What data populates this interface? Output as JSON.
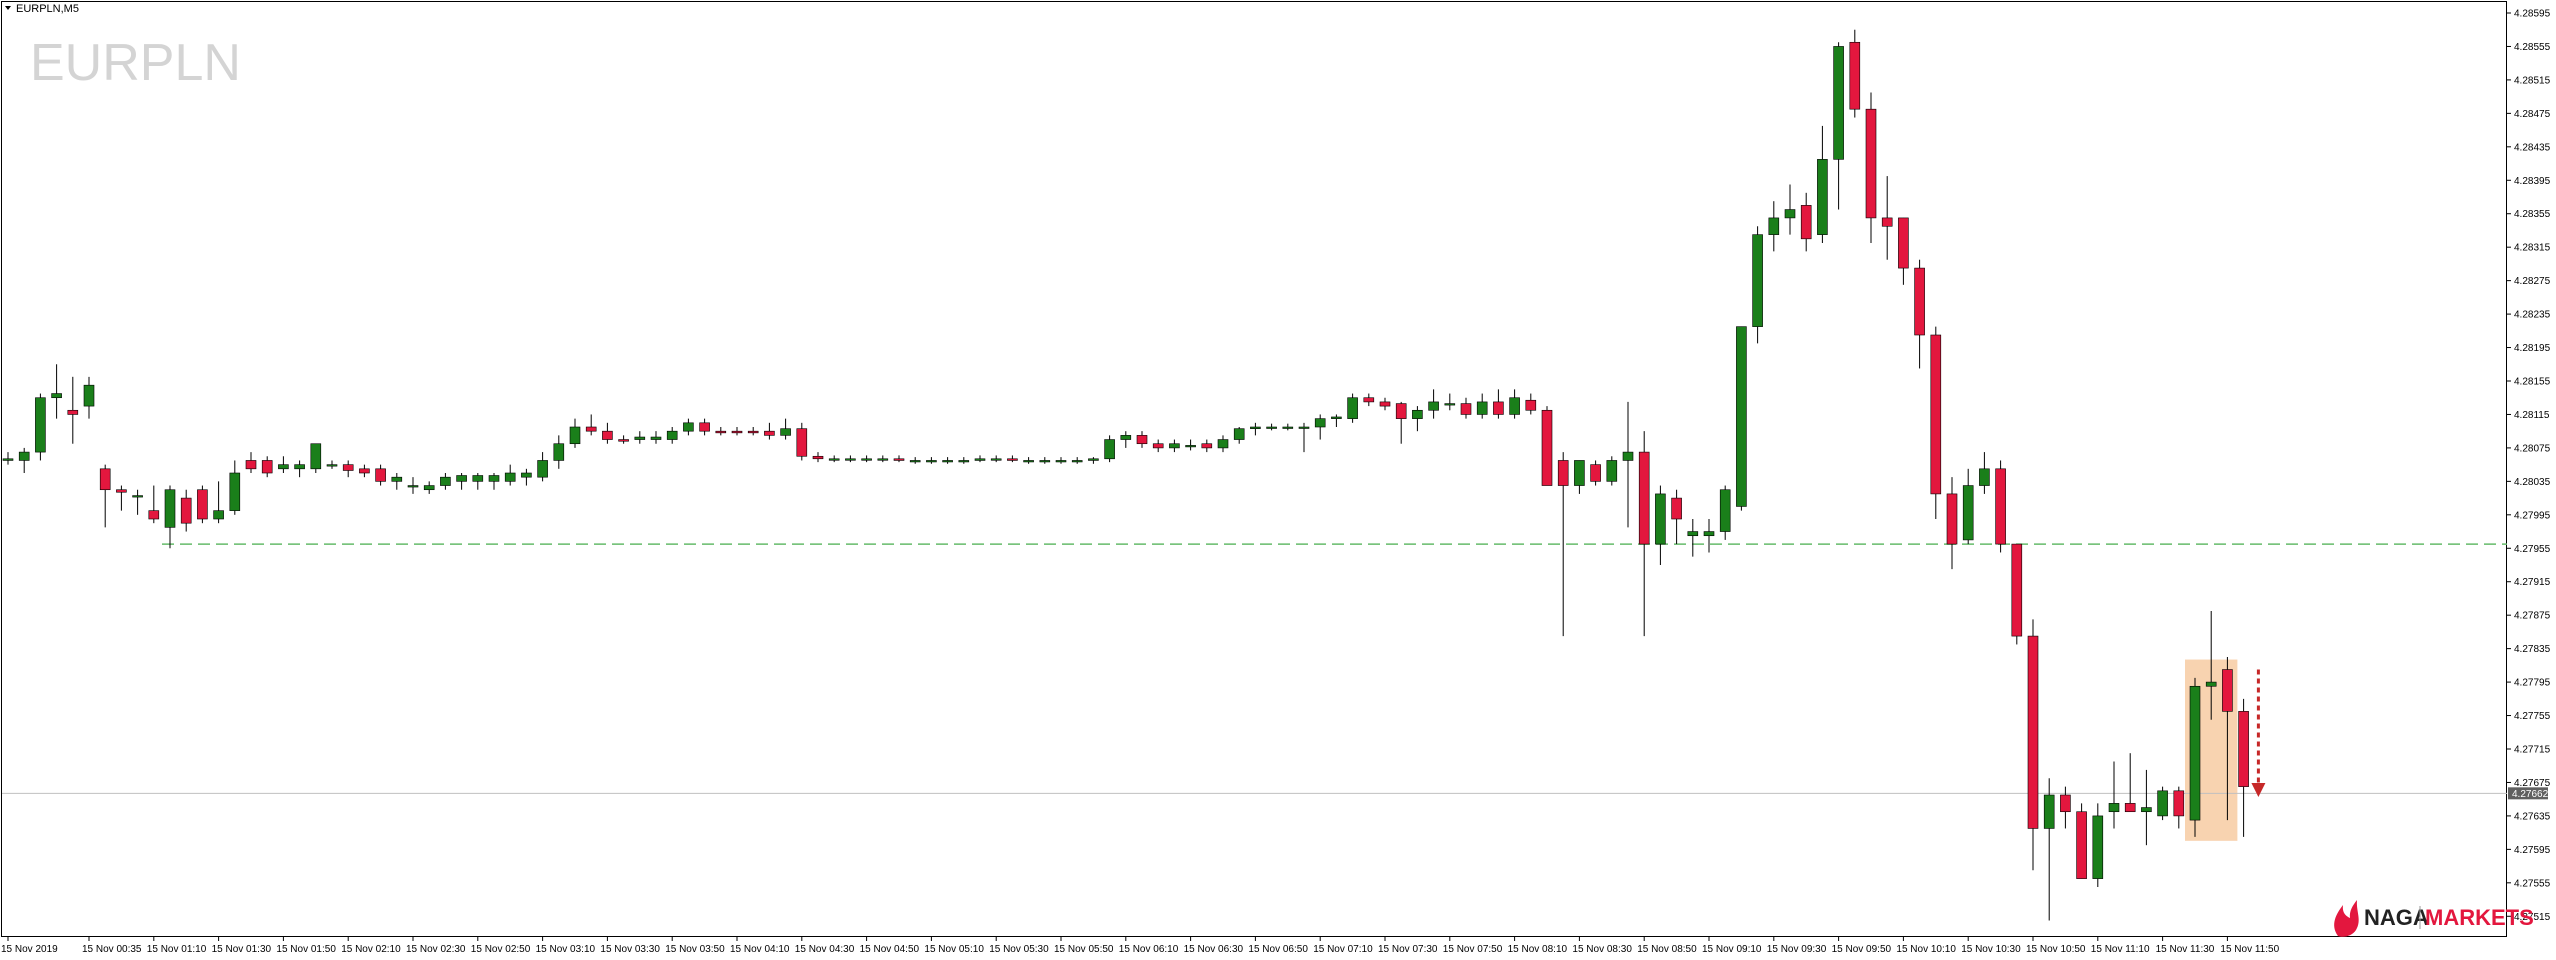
{
  "window": {
    "title": "EURPLN,M5",
    "symbol_watermark": "EURPLN"
  },
  "brand": {
    "part1": "NAGA",
    "part2": "MARKETS",
    "logo_icon": "flame-logo-icon"
  },
  "colors": {
    "bull": "#1a7f1a",
    "bear": "#e3173e",
    "wick": "#000000",
    "level": "#66bb6a",
    "current": "#c0c0c0",
    "highlight": "#f7cba2",
    "arrow": "#c62828"
  },
  "chart_data": {
    "type": "candlestick",
    "timeframe": "M5",
    "ylim": [
      4.27495,
      4.28595
    ],
    "y_ticks": [
      "4.28595",
      "4.28555",
      "4.28515",
      "4.28475",
      "4.28435",
      "4.28395",
      "4.28355",
      "4.28315",
      "4.28275",
      "4.28235",
      "4.28195",
      "4.28155",
      "4.28115",
      "4.28075",
      "4.28035",
      "4.27995",
      "4.27955",
      "4.27915",
      "4.27875",
      "4.27835",
      "4.27795",
      "4.27755",
      "4.27715",
      "4.27675",
      "4.27635",
      "4.27595",
      "4.27555",
      "4.27515"
    ],
    "x_ticks": [
      {
        "i": 0,
        "label": "15 Nov 2019"
      },
      {
        "i": 5,
        "label": "15 Nov 00:35"
      },
      {
        "i": 9,
        "label": "15 Nov 01:10"
      },
      {
        "i": 13,
        "label": "15 Nov 01:30"
      },
      {
        "i": 17,
        "label": "15 Nov 01:50"
      },
      {
        "i": 21,
        "label": "15 Nov 02:10"
      },
      {
        "i": 25,
        "label": "15 Nov 02:30"
      },
      {
        "i": 29,
        "label": "15 Nov 02:50"
      },
      {
        "i": 33,
        "label": "15 Nov 03:10"
      },
      {
        "i": 37,
        "label": "15 Nov 03:30"
      },
      {
        "i": 41,
        "label": "15 Nov 03:50"
      },
      {
        "i": 45,
        "label": "15 Nov 04:10"
      },
      {
        "i": 49,
        "label": "15 Nov 04:30"
      },
      {
        "i": 53,
        "label": "15 Nov 04:50"
      },
      {
        "i": 57,
        "label": "15 Nov 05:10"
      },
      {
        "i": 61,
        "label": "15 Nov 05:30"
      },
      {
        "i": 65,
        "label": "15 Nov 05:50"
      },
      {
        "i": 69,
        "label": "15 Nov 06:10"
      },
      {
        "i": 73,
        "label": "15 Nov 06:30"
      },
      {
        "i": 77,
        "label": "15 Nov 06:50"
      },
      {
        "i": 81,
        "label": "15 Nov 07:10"
      },
      {
        "i": 85,
        "label": "15 Nov 07:30"
      },
      {
        "i": 89,
        "label": "15 Nov 07:50"
      },
      {
        "i": 93,
        "label": "15 Nov 08:10"
      },
      {
        "i": 97,
        "label": "15 Nov 08:30"
      },
      {
        "i": 101,
        "label": "15 Nov 08:50"
      },
      {
        "i": 105,
        "label": "15 Nov 09:10"
      },
      {
        "i": 109,
        "label": "15 Nov 09:30"
      },
      {
        "i": 113,
        "label": "15 Nov 09:50"
      },
      {
        "i": 117,
        "label": "15 Nov 10:10"
      },
      {
        "i": 121,
        "label": "15 Nov 10:30"
      },
      {
        "i": 125,
        "label": "15 Nov 10:50"
      },
      {
        "i": 129,
        "label": "15 Nov 11:10"
      },
      {
        "i": 133,
        "label": "15 Nov 11:30"
      },
      {
        "i": 137,
        "label": "15 Nov 11:50"
      }
    ],
    "candles": [
      {
        "o": 4.2806,
        "h": 4.2807,
        "l": 4.28055,
        "c": 4.28062
      },
      {
        "o": 4.2806,
        "h": 4.28075,
        "l": 4.28045,
        "c": 4.2807
      },
      {
        "o": 4.2807,
        "h": 4.2814,
        "l": 4.2806,
        "c": 4.28135
      },
      {
        "o": 4.28135,
        "h": 4.28175,
        "l": 4.2811,
        "c": 4.2814
      },
      {
        "o": 4.2812,
        "h": 4.2816,
        "l": 4.2808,
        "c": 4.28115
      },
      {
        "o": 4.28125,
        "h": 4.2816,
        "l": 4.2811,
        "c": 4.2815
      },
      {
        "o": 4.2805,
        "h": 4.28055,
        "l": 4.2798,
        "c": 4.28025
      },
      {
        "o": 4.28025,
        "h": 4.2803,
        "l": 4.28,
        "c": 4.28022
      },
      {
        "o": 4.28018,
        "h": 4.28025,
        "l": 4.27995,
        "c": 4.28018
      },
      {
        "o": 4.28,
        "h": 4.2803,
        "l": 4.27985,
        "c": 4.2799
      },
      {
        "o": 4.2798,
        "h": 4.2803,
        "l": 4.27955,
        "c": 4.28025
      },
      {
        "o": 4.28015,
        "h": 4.28025,
        "l": 4.27975,
        "c": 4.27985
      },
      {
        "o": 4.28025,
        "h": 4.2803,
        "l": 4.27985,
        "c": 4.2799
      },
      {
        "o": 4.2799,
        "h": 4.28035,
        "l": 4.27985,
        "c": 4.28
      },
      {
        "o": 4.28,
        "h": 4.2806,
        "l": 4.27995,
        "c": 4.28045
      },
      {
        "o": 4.2806,
        "h": 4.2807,
        "l": 4.28045,
        "c": 4.2805
      },
      {
        "o": 4.2806,
        "h": 4.28065,
        "l": 4.2804,
        "c": 4.28045
      },
      {
        "o": 4.2805,
        "h": 4.28065,
        "l": 4.28045,
        "c": 4.28055
      },
      {
        "o": 4.2805,
        "h": 4.2806,
        "l": 4.2804,
        "c": 4.28055
      },
      {
        "o": 4.2805,
        "h": 4.2808,
        "l": 4.28045,
        "c": 4.2808
      },
      {
        "o": 4.28055,
        "h": 4.2806,
        "l": 4.2805,
        "c": 4.28055
      },
      {
        "o": 4.28055,
        "h": 4.2806,
        "l": 4.2804,
        "c": 4.28048
      },
      {
        "o": 4.2805,
        "h": 4.28055,
        "l": 4.2804,
        "c": 4.28045
      },
      {
        "o": 4.2805,
        "h": 4.28055,
        "l": 4.2803,
        "c": 4.28035
      },
      {
        "o": 4.28035,
        "h": 4.28045,
        "l": 4.28025,
        "c": 4.2804
      },
      {
        "o": 4.2803,
        "h": 4.2804,
        "l": 4.2802,
        "c": 4.2803
      },
      {
        "o": 4.28025,
        "h": 4.28035,
        "l": 4.2802,
        "c": 4.2803
      },
      {
        "o": 4.2803,
        "h": 4.28045,
        "l": 4.28025,
        "c": 4.2804
      },
      {
        "o": 4.28035,
        "h": 4.28045,
        "l": 4.28025,
        "c": 4.28042
      },
      {
        "o": 4.28035,
        "h": 4.28045,
        "l": 4.28025,
        "c": 4.28042
      },
      {
        "o": 4.28035,
        "h": 4.28045,
        "l": 4.28025,
        "c": 4.28042
      },
      {
        "o": 4.28035,
        "h": 4.28055,
        "l": 4.2803,
        "c": 4.28045
      },
      {
        "o": 4.2804,
        "h": 4.2805,
        "l": 4.2803,
        "c": 4.28045
      },
      {
        "o": 4.2804,
        "h": 4.2807,
        "l": 4.28035,
        "c": 4.2806
      },
      {
        "o": 4.2806,
        "h": 4.2809,
        "l": 4.2805,
        "c": 4.2808
      },
      {
        "o": 4.2808,
        "h": 4.2811,
        "l": 4.28075,
        "c": 4.281
      },
      {
        "o": 4.281,
        "h": 4.28115,
        "l": 4.2809,
        "c": 4.28095
      },
      {
        "o": 4.28095,
        "h": 4.28105,
        "l": 4.2808,
        "c": 4.28085
      },
      {
        "o": 4.28085,
        "h": 4.2809,
        "l": 4.2808,
        "c": 4.28083
      },
      {
        "o": 4.28085,
        "h": 4.28095,
        "l": 4.2808,
        "c": 4.28088
      },
      {
        "o": 4.28085,
        "h": 4.28095,
        "l": 4.2808,
        "c": 4.28088
      },
      {
        "o": 4.28085,
        "h": 4.281,
        "l": 4.2808,
        "c": 4.28095
      },
      {
        "o": 4.28095,
        "h": 4.2811,
        "l": 4.2809,
        "c": 4.28105
      },
      {
        "o": 4.28105,
        "h": 4.2811,
        "l": 4.2809,
        "c": 4.28095
      },
      {
        "o": 4.28095,
        "h": 4.281,
        "l": 4.2809,
        "c": 4.28093
      },
      {
        "o": 4.28095,
        "h": 4.281,
        "l": 4.2809,
        "c": 4.28093
      },
      {
        "o": 4.28095,
        "h": 4.281,
        "l": 4.2809,
        "c": 4.28093
      },
      {
        "o": 4.28095,
        "h": 4.28105,
        "l": 4.28085,
        "c": 4.2809
      },
      {
        "o": 4.2809,
        "h": 4.2811,
        "l": 4.28085,
        "c": 4.28098
      },
      {
        "o": 4.28098,
        "h": 4.28105,
        "l": 4.2806,
        "c": 4.28065
      },
      {
        "o": 4.28065,
        "h": 4.2807,
        "l": 4.28058,
        "c": 4.28062
      },
      {
        "o": 4.28062,
        "h": 4.28066,
        "l": 4.28058,
        "c": 4.28062
      },
      {
        "o": 4.28062,
        "h": 4.28066,
        "l": 4.28058,
        "c": 4.28062
      },
      {
        "o": 4.28062,
        "h": 4.28066,
        "l": 4.28058,
        "c": 4.28062
      },
      {
        "o": 4.28062,
        "h": 4.28066,
        "l": 4.28058,
        "c": 4.28062
      },
      {
        "o": 4.28062,
        "h": 4.28066,
        "l": 4.28058,
        "c": 4.2806
      },
      {
        "o": 4.2806,
        "h": 4.28064,
        "l": 4.28056,
        "c": 4.2806
      },
      {
        "o": 4.2806,
        "h": 4.28064,
        "l": 4.28056,
        "c": 4.2806
      },
      {
        "o": 4.2806,
        "h": 4.28064,
        "l": 4.28056,
        "c": 4.2806
      },
      {
        "o": 4.2806,
        "h": 4.28064,
        "l": 4.28056,
        "c": 4.2806
      },
      {
        "o": 4.2806,
        "h": 4.28066,
        "l": 4.28058,
        "c": 4.28062
      },
      {
        "o": 4.28062,
        "h": 4.28066,
        "l": 4.28058,
        "c": 4.28062
      },
      {
        "o": 4.28062,
        "h": 4.28066,
        "l": 4.28058,
        "c": 4.2806
      },
      {
        "o": 4.2806,
        "h": 4.28064,
        "l": 4.28056,
        "c": 4.2806
      },
      {
        "o": 4.2806,
        "h": 4.28064,
        "l": 4.28056,
        "c": 4.2806
      },
      {
        "o": 4.2806,
        "h": 4.28064,
        "l": 4.28056,
        "c": 4.2806
      },
      {
        "o": 4.2806,
        "h": 4.28064,
        "l": 4.28056,
        "c": 4.2806
      },
      {
        "o": 4.2806,
        "h": 4.28064,
        "l": 4.28056,
        "c": 4.28062
      },
      {
        "o": 4.28062,
        "h": 4.2809,
        "l": 4.28058,
        "c": 4.28085
      },
      {
        "o": 4.28085,
        "h": 4.28095,
        "l": 4.28075,
        "c": 4.2809
      },
      {
        "o": 4.2809,
        "h": 4.28095,
        "l": 4.28075,
        "c": 4.2808
      },
      {
        "o": 4.2808,
        "h": 4.28085,
        "l": 4.2807,
        "c": 4.28075
      },
      {
        "o": 4.28075,
        "h": 4.28085,
        "l": 4.2807,
        "c": 4.2808
      },
      {
        "o": 4.28078,
        "h": 4.28085,
        "l": 4.28072,
        "c": 4.28078
      },
      {
        "o": 4.2808,
        "h": 4.28085,
        "l": 4.2807,
        "c": 4.28075
      },
      {
        "o": 4.28075,
        "h": 4.2809,
        "l": 4.2807,
        "c": 4.28085
      },
      {
        "o": 4.28085,
        "h": 4.281,
        "l": 4.2808,
        "c": 4.28098
      },
      {
        "o": 4.28098,
        "h": 4.28105,
        "l": 4.2809,
        "c": 4.281
      },
      {
        "o": 4.281,
        "h": 4.28104,
        "l": 4.28096,
        "c": 4.281
      },
      {
        "o": 4.281,
        "h": 4.28104,
        "l": 4.28096,
        "c": 4.281
      },
      {
        "o": 4.281,
        "h": 4.28105,
        "l": 4.2807,
        "c": 4.281
      },
      {
        "o": 4.281,
        "h": 4.28115,
        "l": 4.28085,
        "c": 4.2811
      },
      {
        "o": 4.2811,
        "h": 4.28115,
        "l": 4.281,
        "c": 4.28112
      },
      {
        "o": 4.2811,
        "h": 4.2814,
        "l": 4.28105,
        "c": 4.28135
      },
      {
        "o": 4.28135,
        "h": 4.2814,
        "l": 4.28125,
        "c": 4.2813
      },
      {
        "o": 4.2813,
        "h": 4.28135,
        "l": 4.2812,
        "c": 4.28125
      },
      {
        "o": 4.28128,
        "h": 4.2813,
        "l": 4.2808,
        "c": 4.2811
      },
      {
        "o": 4.2811,
        "h": 4.28125,
        "l": 4.28095,
        "c": 4.2812
      },
      {
        "o": 4.2812,
        "h": 4.28145,
        "l": 4.2811,
        "c": 4.2813
      },
      {
        "o": 4.28128,
        "h": 4.2814,
        "l": 4.2812,
        "c": 4.28128
      },
      {
        "o": 4.28128,
        "h": 4.28135,
        "l": 4.2811,
        "c": 4.28115
      },
      {
        "o": 4.28115,
        "h": 4.2814,
        "l": 4.2811,
        "c": 4.2813
      },
      {
        "o": 4.2813,
        "h": 4.28145,
        "l": 4.2811,
        "c": 4.28115
      },
      {
        "o": 4.28115,
        "h": 4.28145,
        "l": 4.2811,
        "c": 4.28135
      },
      {
        "o": 4.28132,
        "h": 4.2814,
        "l": 4.28115,
        "c": 4.2812
      },
      {
        "o": 4.2812,
        "h": 4.28125,
        "l": 4.2803,
        "c": 4.2803
      },
      {
        "o": 4.2806,
        "h": 4.2807,
        "l": 4.2785,
        "c": 4.2803
      },
      {
        "o": 4.2803,
        "h": 4.2806,
        "l": 4.2802,
        "c": 4.2806
      },
      {
        "o": 4.28055,
        "h": 4.2806,
        "l": 4.2803,
        "c": 4.28035
      },
      {
        "o": 4.28035,
        "h": 4.28065,
        "l": 4.2803,
        "c": 4.2806
      },
      {
        "o": 4.2806,
        "h": 4.2813,
        "l": 4.2798,
        "c": 4.2807
      },
      {
        "o": 4.2807,
        "h": 4.28095,
        "l": 4.2785,
        "c": 4.2796
      },
      {
        "o": 4.2796,
        "h": 4.2803,
        "l": 4.27935,
        "c": 4.2802
      },
      {
        "o": 4.28015,
        "h": 4.28025,
        "l": 4.2796,
        "c": 4.2799
      },
      {
        "o": 4.2797,
        "h": 4.2799,
        "l": 4.27945,
        "c": 4.27975
      },
      {
        "o": 4.2797,
        "h": 4.2799,
        "l": 4.2795,
        "c": 4.27975
      },
      {
        "o": 4.27975,
        "h": 4.2803,
        "l": 4.27965,
        "c": 4.28025
      },
      {
        "o": 4.28005,
        "h": 4.2822,
        "l": 4.28,
        "c": 4.2822
      },
      {
        "o": 4.2822,
        "h": 4.2834,
        "l": 4.282,
        "c": 4.2833
      },
      {
        "o": 4.2833,
        "h": 4.2837,
        "l": 4.2831,
        "c": 4.2835
      },
      {
        "o": 4.2835,
        "h": 4.2839,
        "l": 4.2833,
        "c": 4.2836
      },
      {
        "o": 4.28365,
        "h": 4.2838,
        "l": 4.2831,
        "c": 4.28325
      },
      {
        "o": 4.2833,
        "h": 4.2846,
        "l": 4.2832,
        "c": 4.2842
      },
      {
        "o": 4.2842,
        "h": 4.2856,
        "l": 4.2836,
        "c": 4.28555
      },
      {
        "o": 4.2856,
        "h": 4.28575,
        "l": 4.2847,
        "c": 4.2848
      },
      {
        "o": 4.2848,
        "h": 4.285,
        "l": 4.2832,
        "c": 4.2835
      },
      {
        "o": 4.2835,
        "h": 4.284,
        "l": 4.283,
        "c": 4.2834
      },
      {
        "o": 4.2835,
        "h": 4.2835,
        "l": 4.2827,
        "c": 4.2829
      },
      {
        "o": 4.2829,
        "h": 4.283,
        "l": 4.2817,
        "c": 4.2821
      },
      {
        "o": 4.2821,
        "h": 4.2822,
        "l": 4.2799,
        "c": 4.2802
      },
      {
        "o": 4.2802,
        "h": 4.2804,
        "l": 4.2793,
        "c": 4.2796
      },
      {
        "o": 4.27965,
        "h": 4.2805,
        "l": 4.2796,
        "c": 4.2803
      },
      {
        "o": 4.2803,
        "h": 4.2807,
        "l": 4.2802,
        "c": 4.2805
      },
      {
        "o": 4.2805,
        "h": 4.2806,
        "l": 4.2795,
        "c": 4.2796
      },
      {
        "o": 4.2796,
        "h": 4.2796,
        "l": 4.2784,
        "c": 4.2785
      },
      {
        "o": 4.2785,
        "h": 4.2787,
        "l": 4.2757,
        "c": 4.2762
      },
      {
        "o": 4.2762,
        "h": 4.2768,
        "l": 4.2751,
        "c": 4.2766
      },
      {
        "o": 4.2766,
        "h": 4.2767,
        "l": 4.2762,
        "c": 4.2764
      },
      {
        "o": 4.2764,
        "h": 4.2765,
        "l": 4.2756,
        "c": 4.2756
      },
      {
        "o": 4.2756,
        "h": 4.2765,
        "l": 4.2755,
        "c": 4.27635
      },
      {
        "o": 4.2764,
        "h": 4.277,
        "l": 4.2762,
        "c": 4.2765
      },
      {
        "o": 4.2765,
        "h": 4.2771,
        "l": 4.2764,
        "c": 4.2764
      },
      {
        "o": 4.2764,
        "h": 4.2769,
        "l": 4.276,
        "c": 4.27645
      },
      {
        "o": 4.27635,
        "h": 4.2767,
        "l": 4.2763,
        "c": 4.27665
      },
      {
        "o": 4.27665,
        "h": 4.2767,
        "l": 4.2762,
        "c": 4.27635
      },
      {
        "o": 4.2763,
        "h": 4.278,
        "l": 4.2761,
        "c": 4.2779
      },
      {
        "o": 4.2779,
        "h": 4.2788,
        "l": 4.2775,
        "c": 4.27795
      },
      {
        "o": 4.2781,
        "h": 4.27825,
        "l": 4.2763,
        "c": 4.2776
      },
      {
        "o": 4.2776,
        "h": 4.27775,
        "l": 4.2761,
        "c": 4.2767
      }
    ],
    "reference_level": 4.2796,
    "current_price": 4.27662,
    "current_price_label": "4.27662",
    "highlight_range": {
      "from_index": 135,
      "to_index": 137
    },
    "annotation": {
      "type": "down-arrow",
      "from": 4.2781,
      "to": 4.2766
    }
  }
}
